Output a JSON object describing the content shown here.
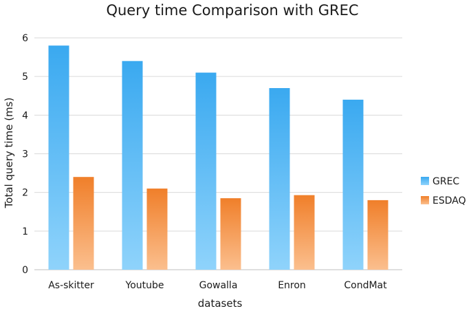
{
  "chart_data": {
    "type": "bar",
    "title": "Query time Comparison with GREC",
    "xlabel": "datasets",
    "ylabel": "Total query time (ms)",
    "categories": [
      "As-skitter",
      "Youtube",
      "Gowalla",
      "Enron",
      "CondMat"
    ],
    "series": [
      {
        "name": "GREC",
        "values": [
          5.8,
          5.4,
          5.1,
          4.7,
          4.4
        ],
        "color_top": "#3aa9f0",
        "color_bottom": "#8fd3fb"
      },
      {
        "name": "ESDAQ",
        "values": [
          2.4,
          2.1,
          1.85,
          1.93,
          1.8
        ],
        "color_top": "#f07f2a",
        "color_bottom": "#fbbf8e"
      }
    ],
    "ylim": [
      0,
      6
    ],
    "yticks": [
      "0",
      "1",
      "2",
      "3",
      "4",
      "5",
      "6"
    ],
    "grid": true,
    "legend": "right"
  }
}
